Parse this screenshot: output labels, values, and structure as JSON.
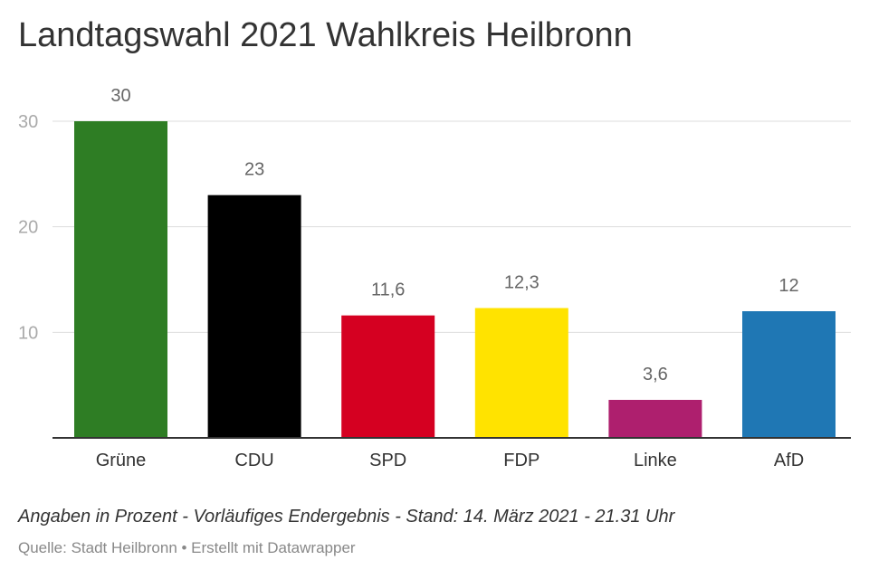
{
  "page": {
    "title": "Landtagswahl 2021 Wahlkreis Heilbronn",
    "note": "Angaben in Prozent - Vorläufiges Endergebnis - Stand: 14. März 2021 - 21.31 Uhr",
    "source": "Quelle: Stadt Heilbronn • Erstellt mit Datawrapper"
  },
  "chart_data": {
    "type": "bar",
    "title": "Landtagswahl 2021 Wahlkreis Heilbronn",
    "xlabel": "",
    "ylabel": "",
    "categories": [
      "Grüne",
      "CDU",
      "SPD",
      "FDP",
      "Linke",
      "AfD"
    ],
    "values": [
      30,
      23,
      11.6,
      12.3,
      3.6,
      12
    ],
    "value_labels": [
      "30",
      "23",
      "11,6",
      "12,3",
      "3,6",
      "12"
    ],
    "colors": [
      "#2e7d24",
      "#000000",
      "#d50021",
      "#ffe300",
      "#ae1f6e",
      "#1f77b4"
    ],
    "ylim": [
      0,
      30
    ],
    "yticks": [
      10,
      20,
      30
    ],
    "ytick_labels": [
      "10",
      "20",
      "30"
    ],
    "grid": true
  },
  "colors": {
    "grid": "#dddddd",
    "axis": "#333333",
    "tick_text": "#aaaaaa",
    "value_text": "#666666",
    "category_text": "#333333"
  }
}
